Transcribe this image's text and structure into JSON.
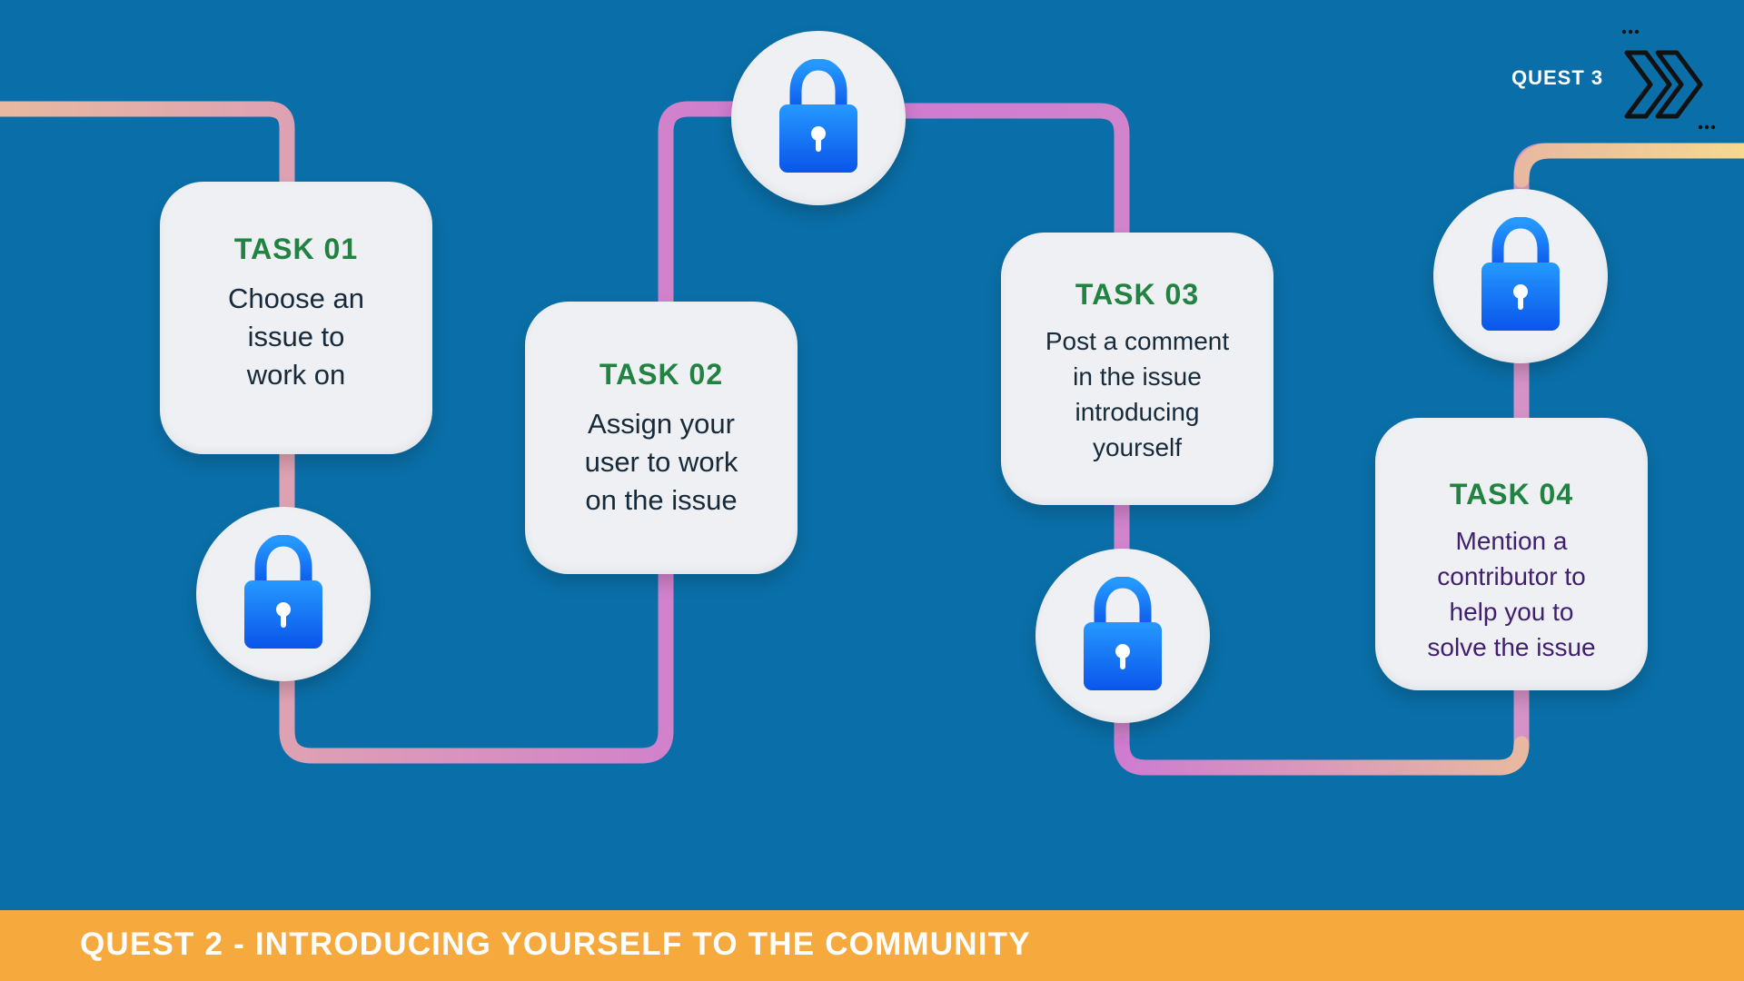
{
  "quest_navigation": {
    "label": "QUEST 3",
    "icon": "double-chevron-right-icon"
  },
  "tasks": [
    {
      "title": "TASK 01",
      "lines": [
        "Choose an",
        "issue to",
        "work on"
      ]
    },
    {
      "title": "TASK 02",
      "lines": [
        "Assign your",
        "user to work",
        "on the issue"
      ]
    },
    {
      "title": "TASK 03",
      "lines": [
        "Post a comment",
        "in the issue",
        "introducing",
        "yourself"
      ]
    },
    {
      "title": "TASK 04",
      "lines": [
        "Mention a",
        "contributor to",
        "help you to",
        "solve the issue"
      ]
    }
  ],
  "lock_icon": "lock-icon",
  "footer": {
    "title": "QUEST 2 - INTRODUCING YOURSELF TO THE COMMUNITY"
  },
  "colors": {
    "background": "#0a6fa8",
    "card": "#eef0f4",
    "task_heading": "#228241",
    "footer_bar": "#f6aa3e",
    "path_yellow": "#f6e28f",
    "path_peach": "#e8b9a0",
    "path_pink": "#cf7bd0",
    "lock_blue": "#1566f2"
  }
}
